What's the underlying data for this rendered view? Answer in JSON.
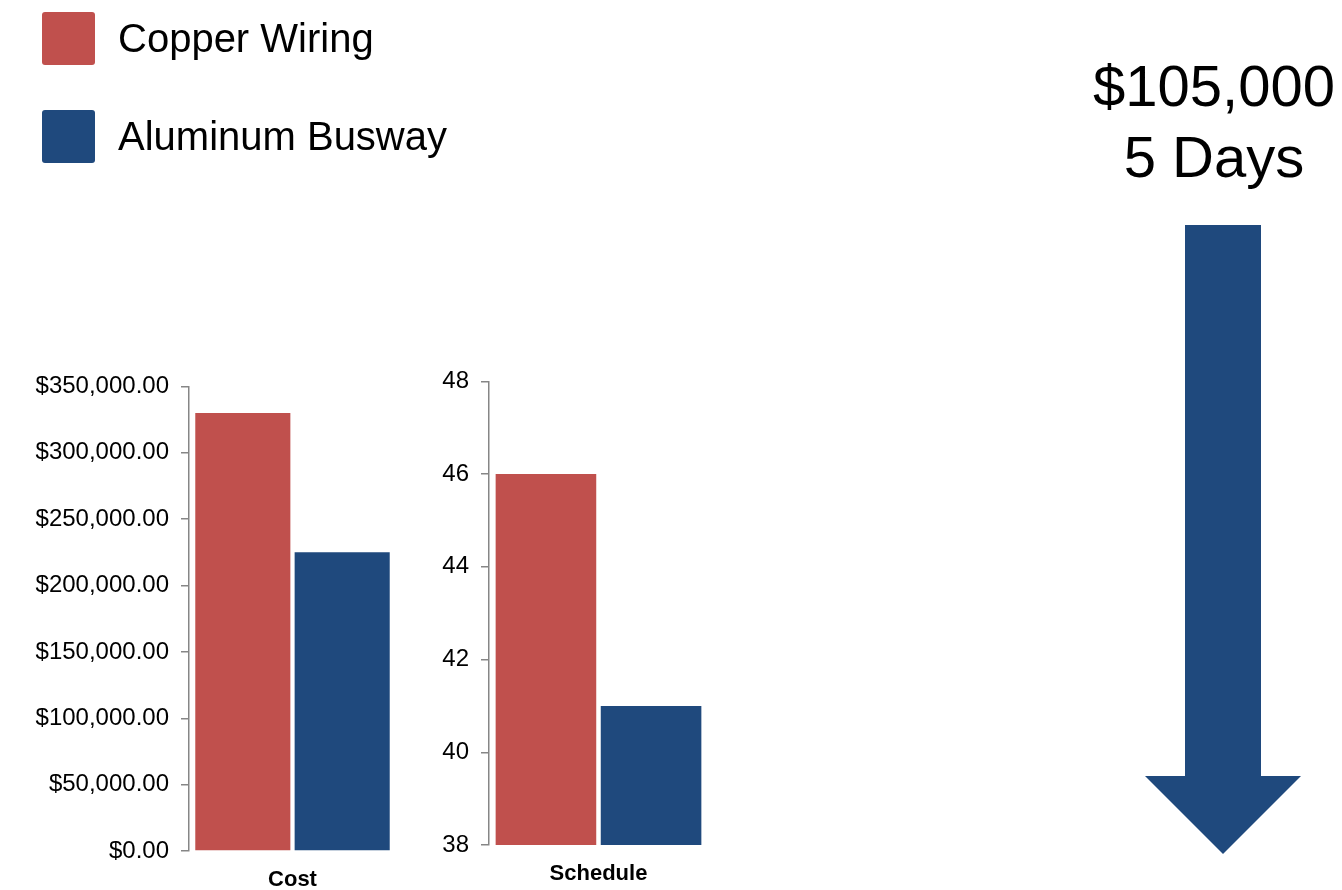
{
  "chart_data": [
    {
      "type": "bar",
      "categories": [
        "Cost"
      ],
      "series": [
        {
          "name": "Copper Wiring",
          "color": "#c0504d",
          "values": [
            330000
          ]
        },
        {
          "name": "Aluminum Busway",
          "color": "#1f497d",
          "values": [
            225000
          ]
        }
      ],
      "ylim": [
        0,
        350000
      ],
      "yticks": [
        {
          "value": 0,
          "label": "$0.00"
        },
        {
          "value": 50000,
          "label": "$50,000.00"
        },
        {
          "value": 100000,
          "label": "$100,000.00"
        },
        {
          "value": 150000,
          "label": "$150,000.00"
        },
        {
          "value": 200000,
          "label": "$200,000.00"
        },
        {
          "value": 250000,
          "label": "$250,000.00"
        },
        {
          "value": 300000,
          "label": "$300,000.00"
        },
        {
          "value": 350000,
          "label": "$350,000.00"
        }
      ],
      "legend": "top left"
    },
    {
      "type": "bar",
      "categories": [
        "Schedule"
      ],
      "series": [
        {
          "color": "#c0504d",
          "values": [
            46
          ]
        },
        {
          "color": "#1f497d",
          "values": [
            41
          ]
        }
      ],
      "ylim": [
        38,
        48
      ],
      "yticks": [
        38,
        40,
        42,
        44,
        46,
        48
      ]
    },
    {
      "type": "other",
      "annotations": [
        "$105,000",
        "5 Days"
      ]
    }
  ]
}
